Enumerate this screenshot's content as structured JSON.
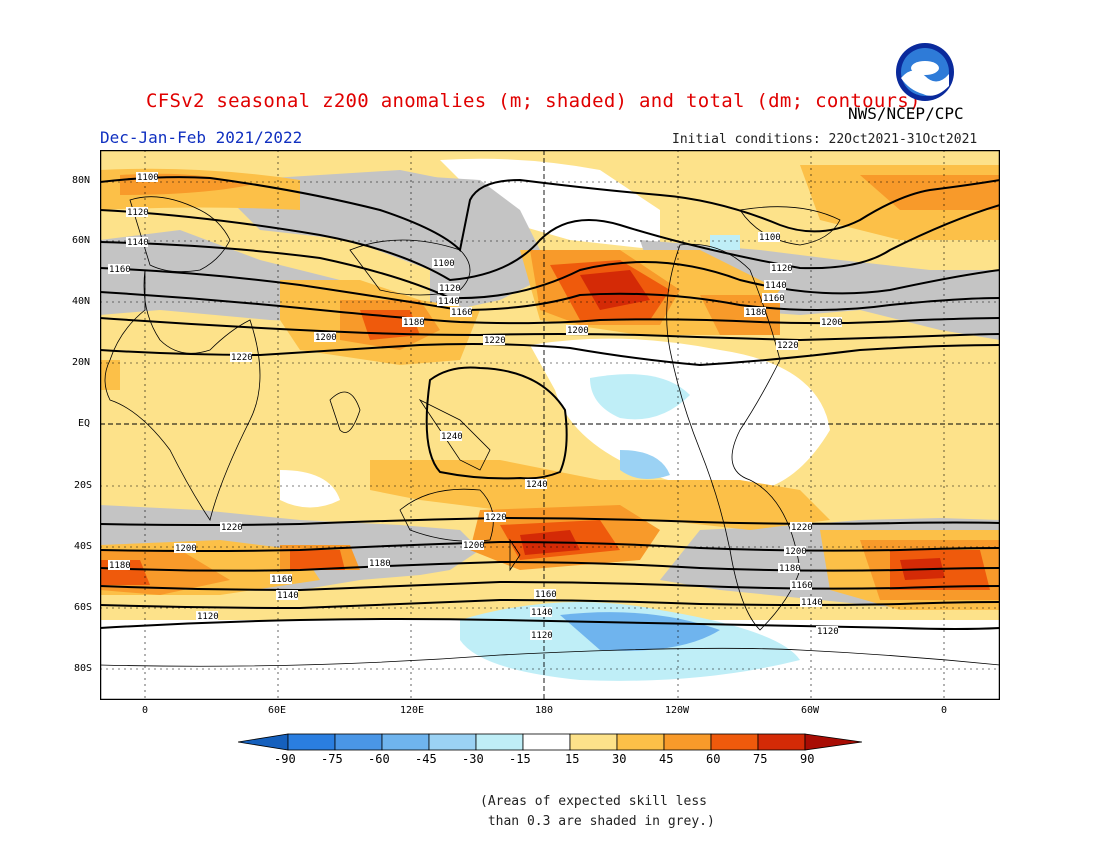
{
  "header": {
    "title": "CFSv2 seasonal z200 anomalies (m; shaded) and total (dm; contours)",
    "agency": "NWS/NCEP/CPC",
    "season": "Dec-Jan-Feb 2021/2022",
    "initial_conditions": "Initial conditions: 22Oct2021-31Oct2021",
    "logo_text": "NOAA"
  },
  "map": {
    "lat_ticks": [
      "80N",
      "60N",
      "40N",
      "20N",
      "EQ",
      "20S",
      "40S",
      "60S",
      "80S"
    ],
    "lon_ticks": [
      "0",
      "60E",
      "120E",
      "180",
      "120W",
      "60W",
      "0"
    ],
    "contour_labels": [
      "1100",
      "1120",
      "1140",
      "1160",
      "1180",
      "1200",
      "1220",
      "1240"
    ]
  },
  "colorbar": {
    "labels": [
      "-90",
      "-75",
      "-60",
      "-45",
      "-30",
      "-15",
      "15",
      "30",
      "45",
      "60",
      "75",
      "90"
    ],
    "colors": [
      "#1560bd",
      "#2a7ee0",
      "#4a96e6",
      "#6fb4ee",
      "#9bd2f4",
      "#bfeef7",
      "#ffffff",
      "#fde28a",
      "#fcc048",
      "#f89a2a",
      "#ef5a0c",
      "#d42a06",
      "#a80c04"
    ]
  },
  "footnote": "(Areas of expected skill less\n than 0.3 are shaded in grey.)",
  "colors": {
    "title": "#e00000",
    "season": "#1030c0",
    "grey_skill": "#c4c4c4"
  }
}
